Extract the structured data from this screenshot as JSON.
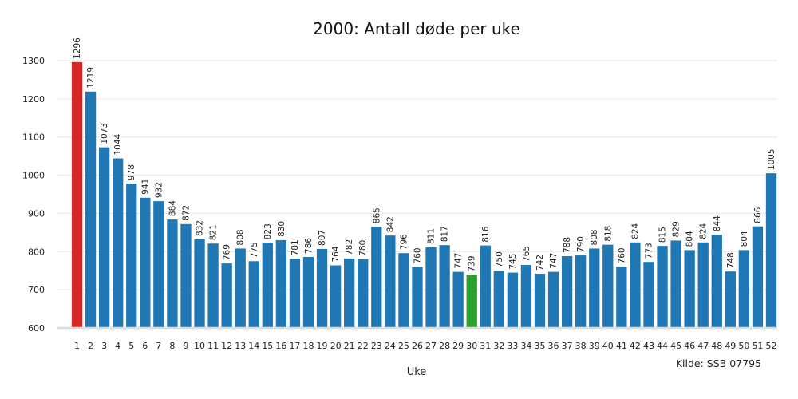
{
  "chart_data": {
    "type": "bar",
    "title": "2000: Antall døde per uke",
    "xlabel": "Uke",
    "ylabel": "",
    "source": "Kilde: SSB 07795",
    "ylim": [
      600,
      1320
    ],
    "yticks": [
      600,
      700,
      800,
      900,
      1000,
      1100,
      1200,
      1300
    ],
    "grid": true,
    "categories": [
      "1",
      "2",
      "3",
      "4",
      "5",
      "6",
      "7",
      "8",
      "9",
      "10",
      "11",
      "12",
      "13",
      "14",
      "15",
      "16",
      "17",
      "18",
      "19",
      "20",
      "21",
      "22",
      "23",
      "24",
      "25",
      "26",
      "27",
      "28",
      "29",
      "30",
      "31",
      "32",
      "33",
      "34",
      "35",
      "36",
      "37",
      "38",
      "39",
      "40",
      "41",
      "42",
      "43",
      "44",
      "45",
      "46",
      "47",
      "48",
      "49",
      "50",
      "51",
      "52"
    ],
    "values": [
      1296,
      1219,
      1073,
      1044,
      978,
      941,
      932,
      884,
      872,
      832,
      821,
      769,
      808,
      775,
      823,
      830,
      781,
      786,
      807,
      764,
      782,
      780,
      865,
      842,
      796,
      760,
      811,
      817,
      747,
      739,
      816,
      750,
      745,
      765,
      742,
      747,
      788,
      790,
      808,
      818,
      760,
      824,
      773,
      815,
      829,
      804,
      824,
      844,
      748,
      804,
      866,
      1005
    ],
    "colors": {
      "default": "#1f77b4",
      "max": "#d62728",
      "min": "#2ca02c"
    }
  }
}
